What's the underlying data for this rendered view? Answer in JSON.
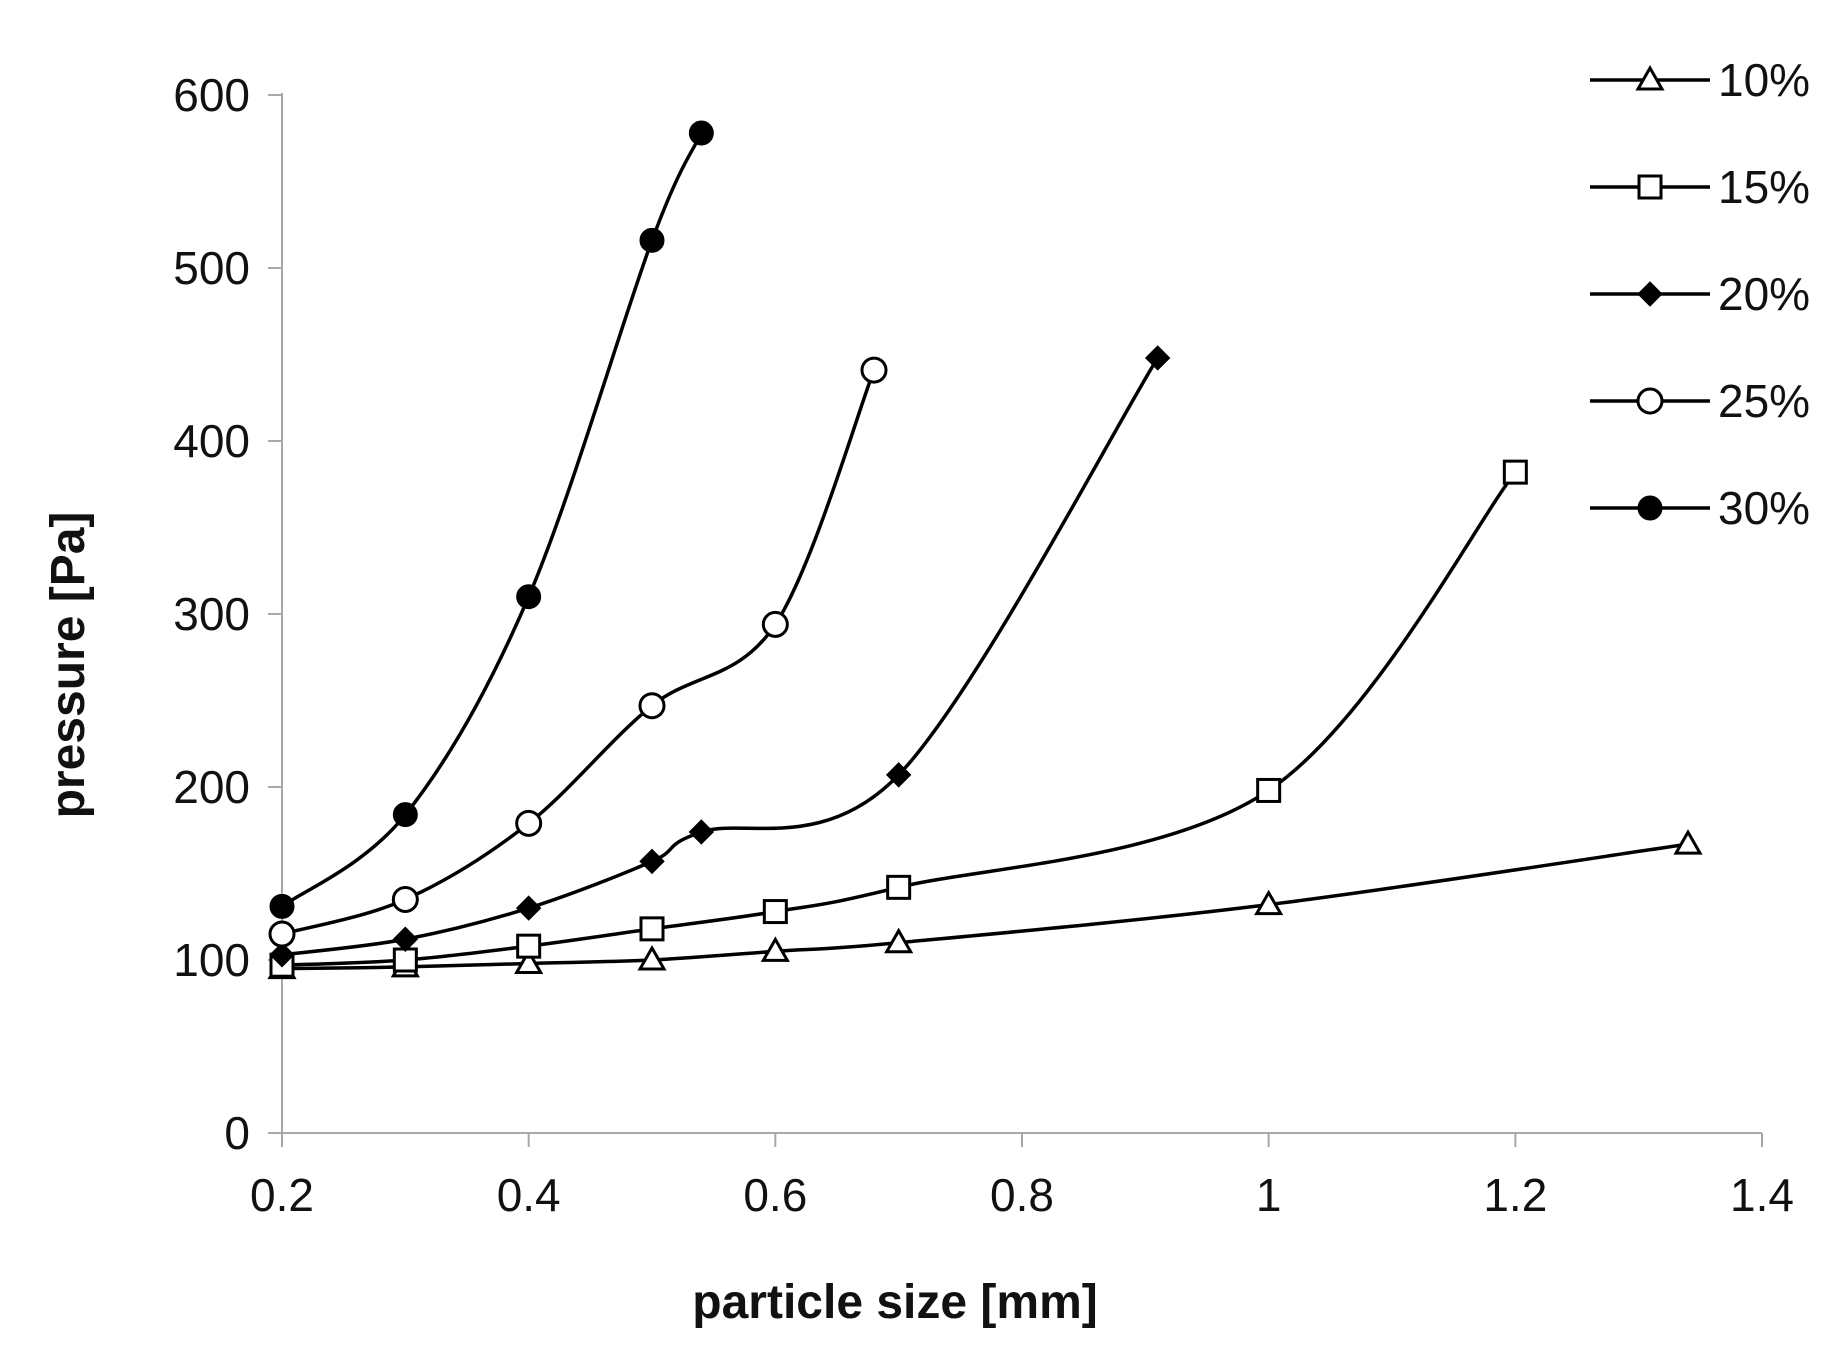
{
  "chart_data": {
    "type": "line",
    "title": "",
    "xlabel": "particle size [mm]",
    "ylabel": "pressure [Pa]",
    "xlim": [
      0.2,
      1.4
    ],
    "ylim": [
      0,
      600
    ],
    "xticks": [
      0.2,
      0.4,
      0.6,
      0.8,
      1.0,
      1.2,
      1.4
    ],
    "xtick_labels": [
      "0.2",
      "0.4",
      "0.6",
      "0.8",
      "1",
      "1.2",
      "1.4"
    ],
    "yticks": [
      0,
      100,
      200,
      300,
      400,
      500,
      600
    ],
    "ytick_labels": [
      "0",
      "100",
      "200",
      "300",
      "400",
      "500",
      "600"
    ],
    "grid": false,
    "legend_position": "top-right",
    "series": [
      {
        "name": "10%",
        "marker": "triangle-open",
        "x": [
          0.2,
          0.3,
          0.4,
          0.5,
          0.6,
          0.7,
          1.0,
          1.34
        ],
        "y": [
          95,
          96,
          98,
          100,
          105,
          110,
          132,
          167
        ]
      },
      {
        "name": "15%",
        "marker": "square-open",
        "x": [
          0.2,
          0.3,
          0.4,
          0.5,
          0.6,
          0.7,
          1.0,
          1.2
        ],
        "y": [
          97,
          100,
          108,
          118,
          128,
          142,
          198,
          382
        ]
      },
      {
        "name": "20%",
        "marker": "diamond-filled",
        "x": [
          0.2,
          0.3,
          0.4,
          0.5,
          0.54,
          0.7,
          0.91
        ],
        "y": [
          103,
          112,
          130,
          157,
          174,
          207,
          448
        ]
      },
      {
        "name": "25%",
        "marker": "circle-open",
        "x": [
          0.2,
          0.3,
          0.4,
          0.5,
          0.6,
          0.68
        ],
        "y": [
          115,
          135,
          179,
          247,
          294,
          441
        ]
      },
      {
        "name": "30%",
        "marker": "circle-filled",
        "x": [
          0.2,
          0.3,
          0.4,
          0.5,
          0.54
        ],
        "y": [
          131,
          184,
          310,
          516,
          578
        ]
      }
    ]
  }
}
